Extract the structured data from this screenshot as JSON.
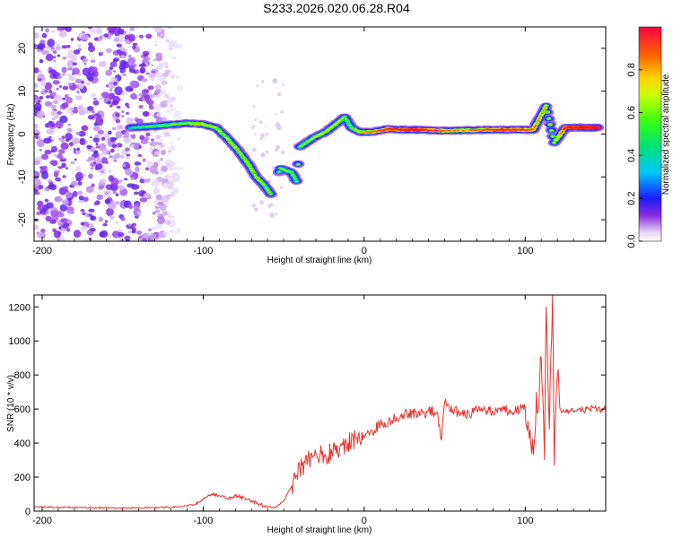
{
  "title": "S233.2026.020.06.28.R04",
  "chart_data": [
    {
      "type": "heatmap",
      "title": "S233.2026.020.06.28.R04",
      "xlabel": "Height of straight line (km)",
      "ylabel": "Frequency (Hz)",
      "xlim": [
        -205,
        150
      ],
      "ylim": [
        -25,
        25
      ],
      "xticks": [
        -200,
        -100,
        0,
        100
      ],
      "yticks": [
        -20,
        -10,
        0,
        10,
        20
      ],
      "colorbar": {
        "label": "Normalized spectral amplitude",
        "range": [
          0,
          1
        ],
        "ticks": [
          0.0,
          0.2,
          0.4,
          0.6,
          0.8
        ]
      },
      "features": {
        "noise_region_km": [
          -205,
          -110
        ],
        "ridge_points": [
          [
            -145,
            1.5,
            0.3
          ],
          [
            -130,
            1.8,
            0.35
          ],
          [
            -120,
            2.2,
            0.4
          ],
          [
            -110,
            2.5,
            0.45
          ],
          [
            -100,
            2.3,
            0.55
          ],
          [
            -92,
            1.5,
            0.5
          ],
          [
            -85,
            -1,
            0.5
          ],
          [
            -78,
            -4,
            0.55
          ],
          [
            -72,
            -7,
            0.5
          ],
          [
            -67,
            -10,
            0.55
          ],
          [
            -62,
            -12,
            0.45
          ],
          [
            -58,
            -14,
            0.5
          ],
          [
            -52,
            -8,
            0.4
          ],
          [
            -45,
            -9,
            0.45
          ],
          [
            -42,
            -11,
            0.4
          ],
          [
            -40,
            -3,
            0.4
          ],
          [
            -32,
            -1,
            0.45
          ],
          [
            -24,
            0.5,
            0.5
          ],
          [
            -17,
            2.5,
            0.5
          ],
          [
            -12,
            4,
            0.45
          ],
          [
            -8,
            1.5,
            0.4
          ],
          [
            -3,
            0.5,
            0.55
          ],
          [
            5,
            0.5,
            0.65
          ],
          [
            15,
            1.2,
            0.8
          ],
          [
            25,
            1.0,
            0.85
          ],
          [
            35,
            1.0,
            0.85
          ],
          [
            45,
            0.8,
            0.75
          ],
          [
            55,
            0.8,
            0.6
          ],
          [
            65,
            0.9,
            0.65
          ],
          [
            75,
            1.0,
            0.7
          ],
          [
            85,
            1.0,
            0.8
          ],
          [
            95,
            1.0,
            0.75
          ],
          [
            105,
            1.0,
            0.7
          ],
          [
            113,
            6.5,
            0.6
          ],
          [
            118,
            -2.0,
            0.45
          ],
          [
            125,
            1.5,
            0.85
          ],
          [
            135,
            1.5,
            0.9
          ],
          [
            145,
            1.5,
            0.95
          ]
        ]
      }
    },
    {
      "type": "line",
      "xlabel": "Height of straight line (km)",
      "ylabel": "SNR (10 * v/v)",
      "xlim": [
        -205,
        150
      ],
      "ylim": [
        0,
        1270
      ],
      "xticks": [
        -200,
        -100,
        0,
        100
      ],
      "yticks": [
        0,
        200,
        400,
        600,
        800,
        1000,
        1200
      ],
      "color": "#e8332c",
      "series": [
        {
          "name": "SNR",
          "x": [
            -205,
            -190,
            -170,
            -150,
            -130,
            -115,
            -105,
            -100,
            -95,
            -90,
            -85,
            -80,
            -75,
            -70,
            -65,
            -60,
            -55,
            -50,
            -45,
            -40,
            -35,
            -30,
            -25,
            -20,
            -15,
            -10,
            -5,
            0,
            5,
            10,
            15,
            20,
            25,
            30,
            35,
            40,
            45,
            48,
            50,
            55,
            60,
            65,
            70,
            75,
            80,
            85,
            90,
            95,
            100,
            103,
            105,
            107,
            108,
            110,
            112,
            113,
            115,
            117,
            118,
            120,
            122,
            125,
            130,
            140,
            150
          ],
          "y": [
            25,
            22,
            20,
            18,
            20,
            25,
            40,
            70,
            100,
            90,
            75,
            90,
            80,
            60,
            40,
            25,
            20,
            60,
            150,
            250,
            300,
            340,
            330,
            340,
            380,
            400,
            430,
            440,
            470,
            510,
            530,
            550,
            570,
            580,
            570,
            590,
            580,
            420,
            640,
            590,
            580,
            570,
            590,
            600,
            580,
            610,
            590,
            600,
            600,
            480,
            330,
            700,
            580,
            900,
            300,
            1200,
            480,
            1270,
            270,
            800,
            600,
            580,
            590,
            600,
            600
          ]
        }
      ]
    }
  ]
}
